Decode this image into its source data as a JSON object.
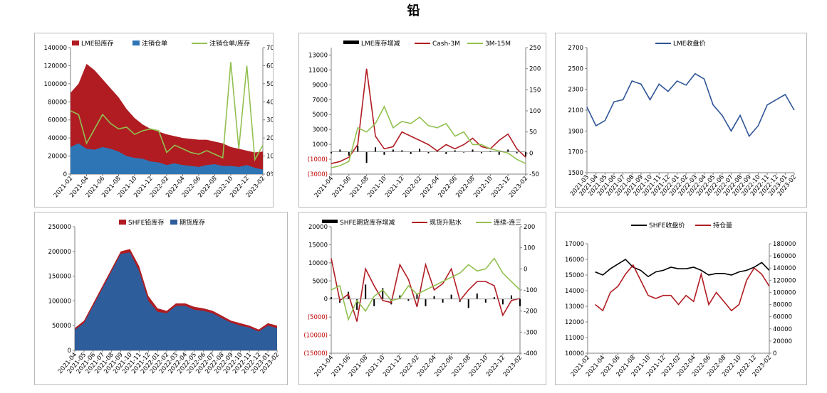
{
  "page": {
    "title": "铅"
  },
  "chart_data": [
    {
      "id": "lme-inventory",
      "type": "area",
      "legend": [
        "LME铅库存",
        "注销仓单",
        "注销仓单/库存"
      ],
      "colors": {
        "inventory": "#b01c22",
        "cancelled": "#2e75b6",
        "ratio": "#92c050"
      },
      "x_ticks": [
        "2021-02",
        "2021-04",
        "2021-06",
        "2021-08",
        "2021-10",
        "2021-12",
        "2022-02",
        "2022-04",
        "2022-06",
        "2022-08",
        "2022-10",
        "2022-12",
        "2023-02"
      ],
      "x": [
        "2021-02",
        "2021-03",
        "2021-04",
        "2021-05",
        "2021-06",
        "2021-07",
        "2021-08",
        "2021-09",
        "2021-10",
        "2021-11",
        "2021-12",
        "2022-01",
        "2022-02",
        "2022-03",
        "2022-04",
        "2022-05",
        "2022-06",
        "2022-07",
        "2022-08",
        "2022-09",
        "2022-10",
        "2022-11",
        "2022-12",
        "2023-01",
        "2023-02"
      ],
      "left_ticks": [
        "0",
        "20000",
        "40000",
        "60000",
        "80000",
        "100000",
        "120000",
        "140000"
      ],
      "right_ticks": [
        "0%",
        "10%",
        "20%",
        "30%",
        "40%",
        "50%",
        "60%",
        "70%"
      ],
      "ylim": [
        0,
        140000
      ],
      "y2lim": [
        0,
        0.7
      ],
      "series": [
        {
          "values": [
            90000,
            100000,
            122000,
            115000,
            105000,
            95000,
            85000,
            72000,
            62000,
            55000,
            50000,
            47000,
            44000,
            42000,
            40000,
            39000,
            38000,
            38000,
            36000,
            34000,
            30000,
            28000,
            26000,
            24000,
            25000
          ]
        },
        {
          "values": [
            30000,
            34000,
            28000,
            27000,
            30000,
            28000,
            25000,
            20000,
            18000,
            17000,
            14000,
            13000,
            10000,
            12000,
            10000,
            9000,
            8000,
            10000,
            11000,
            9000,
            9000,
            8000,
            10000,
            7000,
            5000
          ]
        },
        {
          "values": [
            0.35,
            0.33,
            0.17,
            0.25,
            0.33,
            0.28,
            0.25,
            0.26,
            0.22,
            0.24,
            0.25,
            0.24,
            0.12,
            0.16,
            0.14,
            0.12,
            0.11,
            0.13,
            0.11,
            0.09,
            0.62,
            0.14,
            0.6,
            0.08,
            0.16
          ]
        }
      ]
    },
    {
      "id": "lme-spread",
      "type": "line",
      "legend": [
        "LME库存增减",
        "Cash-3M",
        "3M-15M"
      ],
      "colors": {
        "change": "#000000",
        "cash3m": "#b01c22",
        "m3m15": "#92c050"
      },
      "x_ticks": [
        "2021-04",
        "2021-06",
        "2021-08",
        "2021-10",
        "2021-12",
        "2022-02",
        "2022-04",
        "2022-06",
        "2022-08",
        "2022-10",
        "2022-12",
        "2023-02"
      ],
      "x": [
        "2021-04",
        "2021-05",
        "2021-06",
        "2021-07",
        "2021-08",
        "2021-09",
        "2021-10",
        "2021-11",
        "2021-12",
        "2022-01",
        "2022-02",
        "2022-03",
        "2022-04",
        "2022-05",
        "2022-06",
        "2022-07",
        "2022-08",
        "2022-09",
        "2022-10",
        "2022-11",
        "2022-12",
        "2023-01",
        "2023-02"
      ],
      "left_ticks": [
        "(3000)",
        "(1000)",
        "1000",
        "3000",
        "5000",
        "7000",
        "9000",
        "11000",
        "13000"
      ],
      "right_ticks": [
        "-50",
        "0",
        "50",
        "100",
        "150",
        "200",
        "250"
      ],
      "ylim": [
        -3000,
        14000
      ],
      "y2lim": [
        -50,
        250
      ],
      "series": [
        {
          "values": [
            -200,
            300,
            -500,
            800,
            -1500,
            600,
            -400,
            300,
            200,
            -300,
            400,
            -200,
            100,
            -300,
            200,
            -100,
            300,
            -200,
            100,
            -400,
            300,
            -200,
            -600
          ]
        },
        {
          "values": [
            -25,
            -20,
            -10,
            20,
            200,
            40,
            10,
            15,
            50,
            40,
            30,
            20,
            5,
            20,
            10,
            20,
            35,
            15,
            10,
            30,
            45,
            10,
            -10
          ]
        },
        {
          "values": [
            -35,
            -30,
            -20,
            60,
            50,
            70,
            110,
            60,
            75,
            70,
            85,
            65,
            60,
            70,
            40,
            50,
            20,
            20,
            10,
            5,
            0,
            -15,
            -25
          ]
        }
      ]
    },
    {
      "id": "lme-close",
      "type": "line",
      "legend": [
        "LME收盘价"
      ],
      "colors": {
        "close": "#2f5597"
      },
      "x_ticks": [
        "2021-03",
        "2021-04",
        "2021-05",
        "2021-06",
        "2021-07",
        "2021-08",
        "2021-09",
        "2021-10",
        "2021-11",
        "2021-12",
        "2022-01",
        "2022-02",
        "2022-03",
        "2022-04",
        "2022-05",
        "2022-06",
        "2022-07",
        "2022-08",
        "2022-09",
        "2022-10",
        "2022-11",
        "2022-12",
        "2023-01",
        "2023-02"
      ],
      "x": [
        "2021-03",
        "2021-04",
        "2021-05",
        "2021-06",
        "2021-07",
        "2021-08",
        "2021-09",
        "2021-10",
        "2021-11",
        "2021-12",
        "2022-01",
        "2022-02",
        "2022-03",
        "2022-04",
        "2022-05",
        "2022-06",
        "2022-07",
        "2022-08",
        "2022-09",
        "2022-10",
        "2022-11",
        "2022-12",
        "2023-01",
        "2023-02"
      ],
      "left_ticks": [
        "1500",
        "1700",
        "1900",
        "2100",
        "2300",
        "2500",
        "2700"
      ],
      "ylim": [
        1500,
        2700
      ],
      "series": [
        {
          "values": [
            2130,
            1950,
            2000,
            2180,
            2200,
            2380,
            2350,
            2200,
            2350,
            2280,
            2380,
            2340,
            2450,
            2400,
            2150,
            2050,
            1900,
            2050,
            1850,
            1950,
            2150,
            2200,
            2250,
            2100
          ]
        }
      ]
    },
    {
      "id": "shfe-inventory",
      "type": "area",
      "legend": [
        "SHFE铅库存",
        "期货库存"
      ],
      "colors": {
        "inventory": "#b01c22",
        "futures": "#2e5d9c"
      },
      "x_ticks": [
        "2021-04",
        "2021-05",
        "2021-06",
        "2021-07",
        "2021-08",
        "2021-09",
        "2021-10",
        "2021-11",
        "2021-12",
        "2022-01",
        "2022-02",
        "2022-03",
        "2022-04",
        "2022-05",
        "2022-06",
        "2022-07",
        "2022-08",
        "2022-09",
        "2022-10",
        "2022-11",
        "2022-12",
        "2023-01",
        "2023-02"
      ],
      "x": [
        "2021-04",
        "2021-05",
        "2021-06",
        "2021-07",
        "2021-08",
        "2021-09",
        "2021-10",
        "2021-11",
        "2021-12",
        "2022-01",
        "2022-02",
        "2022-03",
        "2022-04",
        "2022-05",
        "2022-06",
        "2022-07",
        "2022-08",
        "2022-09",
        "2022-10",
        "2022-11",
        "2022-12",
        "2023-01",
        "2023-02"
      ],
      "left_ticks": [
        "0",
        "50000",
        "100000",
        "150000",
        "200000",
        "250000"
      ],
      "ylim": [
        0,
        250000
      ],
      "series": [
        {
          "values": [
            45000,
            60000,
            95000,
            130000,
            165000,
            200000,
            205000,
            170000,
            110000,
            85000,
            80000,
            95000,
            95000,
            88000,
            85000,
            80000,
            70000,
            60000,
            55000,
            50000,
            42000,
            55000,
            50000
          ]
        },
        {
          "values": [
            42000,
            55000,
            90000,
            125000,
            160000,
            195000,
            198000,
            160000,
            100000,
            78000,
            75000,
            90000,
            90000,
            82000,
            80000,
            75000,
            65000,
            56000,
            50000,
            46000,
            38000,
            50000,
            45000
          ]
        }
      ]
    },
    {
      "id": "shfe-spread",
      "type": "line",
      "legend": [
        "SHFE期货库存增减",
        "现货升贴水",
        "连续-连三"
      ],
      "colors": {
        "change": "#000000",
        "basis": "#b01c22",
        "spread": "#92c050"
      },
      "x_ticks": [
        "2021-04",
        "2021-06",
        "2021-08",
        "2021-10",
        "2021-12",
        "2022-02",
        "2022-04",
        "2022-06",
        "2022-08",
        "2022-10",
        "2022-12",
        "2023-02"
      ],
      "x": [
        "2021-04",
        "2021-05",
        "2021-06",
        "2021-07",
        "2021-08",
        "2021-09",
        "2021-10",
        "2021-11",
        "2021-12",
        "2022-01",
        "2022-02",
        "2022-03",
        "2022-04",
        "2022-05",
        "2022-06",
        "2022-07",
        "2022-08",
        "2022-09",
        "2022-10",
        "2022-11",
        "2022-12",
        "2023-01",
        "2023-02"
      ],
      "left_ticks": [
        "(15000)",
        "(10000)",
        "(5000)",
        "0",
        "5000",
        "10000",
        "15000",
        "20000"
      ],
      "right_ticks": [
        "-400",
        "-300",
        "-200",
        "-100",
        "0",
        "100",
        "200"
      ],
      "ylim": [
        -15000,
        20000
      ],
      "y2lim": [
        -400,
        200
      ],
      "series": [
        {
          "values": [
            500,
            -1000,
            2000,
            -3000,
            4000,
            -2000,
            3000,
            -1500,
            1000,
            -500,
            1500,
            -2000,
            800,
            -1000,
            1200,
            -800,
            -2500,
            1500,
            -1000,
            500,
            -1500,
            1000,
            -2000
          ]
        },
        {
          "values": [
            50,
            -150,
            -120,
            -250,
            0,
            -80,
            -150,
            -160,
            20,
            -50,
            -180,
            20,
            -100,
            -70,
            0,
            -150,
            -100,
            -60,
            -60,
            -80,
            -220,
            -150,
            -140
          ]
        },
        {
          "values": [
            -100,
            -80,
            -240,
            -150,
            -200,
            -130,
            -100,
            -150,
            -140,
            -80,
            -120,
            -100,
            -80,
            -60,
            -40,
            -20,
            20,
            -10,
            0,
            50,
            -20,
            -60,
            -100
          ]
        }
      ]
    },
    {
      "id": "shfe-close",
      "type": "line",
      "legend": [
        "SHFE收盘价",
        "持仓量"
      ],
      "colors": {
        "close": "#000000",
        "oi": "#b01c22"
      },
      "x_ticks": [
        "2021-02",
        "2021-04",
        "2021-06",
        "2021-08",
        "2021-10",
        "2021-12",
        "2022-02",
        "2022-04",
        "2022-06",
        "2022-08",
        "2022-10",
        "2022-12",
        "2023-02"
      ],
      "x": [
        "2021-03",
        "2021-04",
        "2021-05",
        "2021-06",
        "2021-07",
        "2021-08",
        "2021-09",
        "2021-10",
        "2021-11",
        "2021-12",
        "2022-01",
        "2022-02",
        "2022-03",
        "2022-04",
        "2022-05",
        "2022-06",
        "2022-07",
        "2022-08",
        "2022-09",
        "2022-10",
        "2022-11",
        "2022-12",
        "2023-01",
        "2023-02"
      ],
      "left_ticks": [
        "10000",
        "11000",
        "12000",
        "13000",
        "14000",
        "15000",
        "16000",
        "17000"
      ],
      "right_ticks": [
        "0",
        "20000",
        "40000",
        "60000",
        "80000",
        "100000",
        "120000",
        "140000",
        "160000",
        "180000"
      ],
      "ylim": [
        10000,
        17000
      ],
      "y2lim": [
        0,
        180000
      ],
      "series": [
        {
          "values": [
            15200,
            15000,
            15400,
            15700,
            16000,
            15500,
            15300,
            14900,
            15200,
            15300,
            15500,
            15400,
            15400,
            15500,
            15300,
            15000,
            15100,
            15100,
            15000,
            15200,
            15300,
            15500,
            15800,
            15300
          ]
        },
        {
          "values": [
            80000,
            70000,
            100000,
            110000,
            130000,
            145000,
            120000,
            95000,
            90000,
            95000,
            95000,
            80000,
            95000,
            85000,
            130000,
            80000,
            100000,
            85000,
            70000,
            80000,
            120000,
            140000,
            130000,
            110000
          ]
        }
      ]
    }
  ]
}
